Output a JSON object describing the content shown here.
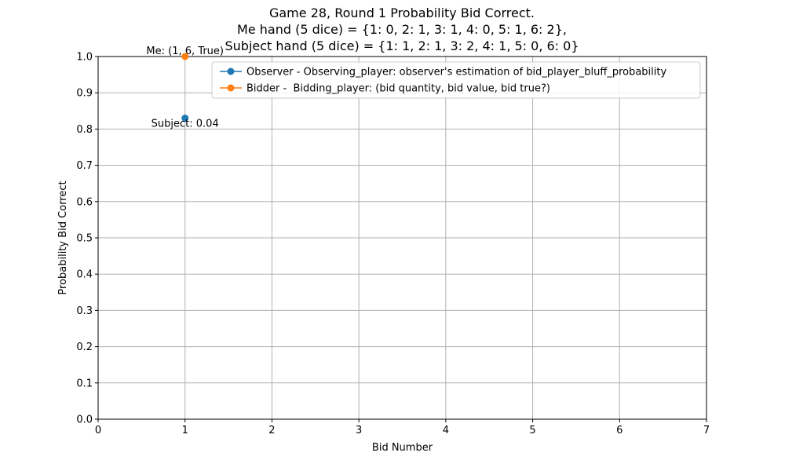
{
  "chart_data": {
    "type": "line",
    "title_lines": [
      "Game 28, Round 1 Probability Bid Correct.",
      "Me hand (5 dice) = {1: 0, 2: 1, 3: 1, 4: 0, 5: 1, 6: 2},",
      "Subject hand (5 dice) = {1: 1, 2: 1, 3: 2, 4: 1, 5: 0, 6: 0}"
    ],
    "xlabel": "Bid Number",
    "ylabel": "Probability Bid Correct",
    "xlim": [
      0,
      7
    ],
    "ylim": [
      0,
      1.0
    ],
    "xticks": [
      "0",
      "1",
      "2",
      "3",
      "4",
      "5",
      "6",
      "7"
    ],
    "yticks": [
      "0.0",
      "0.1",
      "0.2",
      "0.3",
      "0.4",
      "0.5",
      "0.6",
      "0.7",
      "0.8",
      "0.9",
      "1.0"
    ],
    "grid": true,
    "legend_position": "top-right",
    "series": [
      {
        "name": "Observer - Observing_player: observer's estimation of bid_player_bluff_probability",
        "color": "#1f77b4",
        "marker": "circle",
        "points": [
          {
            "x": 1,
            "y": 0.83
          }
        ]
      },
      {
        "name": "Bidder -  Bidding_player: (bid quantity, bid value, bid true?)",
        "color": "#ff7f0e",
        "marker": "circle",
        "points": [
          {
            "x": 1,
            "y": 1.0
          }
        ]
      }
    ],
    "annotations": [
      {
        "text": "Subject: 0.04",
        "x": 1,
        "y": 0.83,
        "placement": "below"
      },
      {
        "text": "Me: (1, 6, True)",
        "x": 1,
        "y": 1.0,
        "placement": "above"
      }
    ]
  }
}
